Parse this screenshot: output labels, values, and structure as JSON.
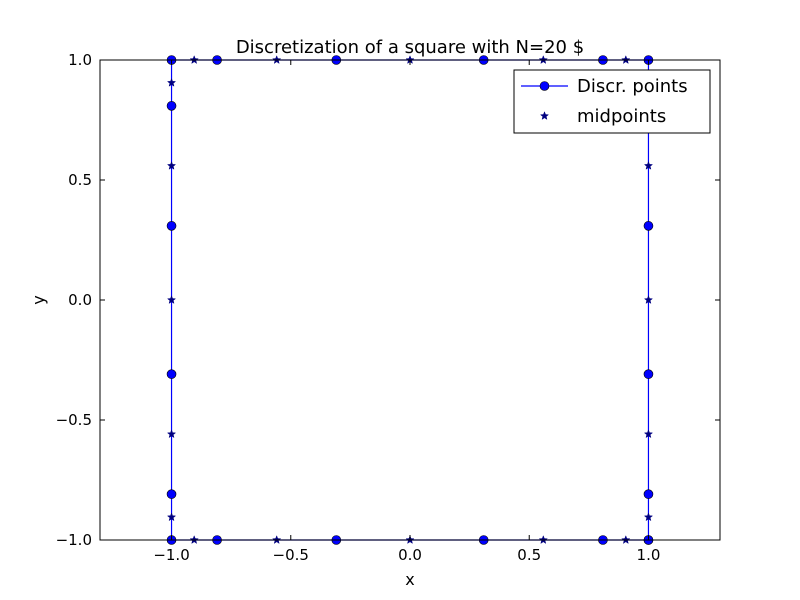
{
  "chart_data": {
    "type": "scatter",
    "title": "Discretization of a square with N=20 $",
    "xlabel": "x",
    "ylabel": "y",
    "xlim": [
      -1.3,
      1.3
    ],
    "ylim": [
      -1.0,
      1.0
    ],
    "xticks": [
      -1.0,
      -0.5,
      0.0,
      0.5,
      1.0
    ],
    "xtick_labels": [
      "−1.0",
      "−0.5",
      "0.0",
      "0.5",
      "1.0"
    ],
    "yticks": [
      -1.0,
      -0.5,
      0.0,
      0.5,
      1.0
    ],
    "ytick_labels": [
      "−1.0",
      "−0.5",
      "0.0",
      "0.5",
      "1.0"
    ],
    "grid": false,
    "legend_position": "top-right",
    "series": [
      {
        "name": "Discr. points",
        "style": "line-circle",
        "color": "#0000ff",
        "x": [
          1.0,
          1.0,
          1.0,
          1.0,
          1.0,
          1.0,
          0.809,
          0.309,
          -0.309,
          -0.809,
          -1.0,
          -1.0,
          -1.0,
          -1.0,
          -1.0,
          -1.0,
          -0.809,
          -0.309,
          0.309,
          0.809,
          1.0
        ],
        "y": [
          -1.0,
          -0.809,
          -0.309,
          0.309,
          0.809,
          1.0,
          1.0,
          1.0,
          1.0,
          1.0,
          1.0,
          0.809,
          0.309,
          -0.309,
          -0.809,
          -1.0,
          -1.0,
          -1.0,
          -1.0,
          -1.0,
          -1.0
        ]
      },
      {
        "name": "midpoints",
        "style": "star",
        "color": "#000080",
        "x": [
          1.0,
          1.0,
          1.0,
          1.0,
          1.0,
          0.905,
          0.559,
          0.0,
          -0.559,
          -0.905,
          -1.0,
          -1.0,
          -1.0,
          -1.0,
          -1.0,
          -0.905,
          -0.559,
          0.0,
          0.559,
          0.905
        ],
        "y": [
          -0.905,
          -0.559,
          0.0,
          0.559,
          0.905,
          1.0,
          1.0,
          1.0,
          1.0,
          1.0,
          0.905,
          0.559,
          0.0,
          -0.559,
          -0.905,
          -1.0,
          -1.0,
          -1.0,
          -1.0,
          -1.0
        ]
      }
    ]
  }
}
